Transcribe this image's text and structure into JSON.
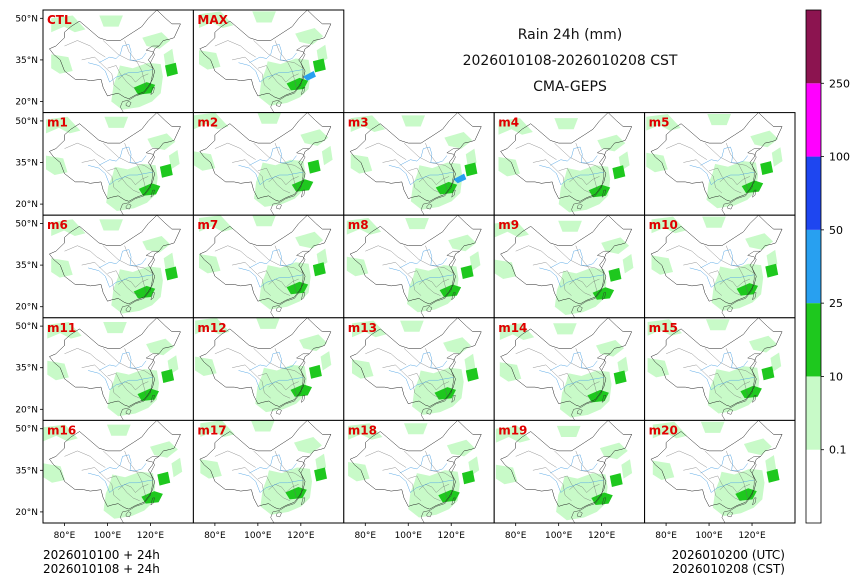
{
  "header": {
    "title": "Rain 24h (mm)",
    "period": "2026010108-2026010208 CST",
    "model": "CMA-GEPS"
  },
  "footer": {
    "left_line1": "2026010100 + 24h",
    "left_line2": "2026010108 + 24h",
    "right_line1": "2026010200 (UTC)",
    "right_line2": "2026010208 (CST)"
  },
  "chart_data": {
    "type": "heatmap",
    "title": "Rain 24h (mm)",
    "subtitle": "2026010108-2026010208 CST",
    "source": "CMA-GEPS",
    "panels": [
      "CTL",
      "MAX",
      "m1",
      "m2",
      "m3",
      "m4",
      "m5",
      "m6",
      "m7",
      "m8",
      "m9",
      "m10",
      "m11",
      "m12",
      "m13",
      "m14",
      "m15",
      "m16",
      "m17",
      "m18",
      "m19",
      "m20"
    ],
    "panel_grid_rows": [
      [
        "CTL",
        "MAX"
      ],
      [
        "m1",
        "m2",
        "m3",
        "m4",
        "m5"
      ],
      [
        "m6",
        "m7",
        "m8",
        "m9",
        "m10"
      ],
      [
        "m11",
        "m12",
        "m13",
        "m14",
        "m15"
      ],
      [
        "m16",
        "m17",
        "m18",
        "m19",
        "m20"
      ]
    ],
    "lat_ticks": [
      "50°N",
      "35°N",
      "20°N"
    ],
    "lat_values": [
      50,
      35,
      20
    ],
    "lon_ticks": [
      "80°E",
      "100°E",
      "120°E"
    ],
    "lon_values": [
      80,
      100,
      120
    ],
    "xlim": [
      70,
      140
    ],
    "ylim": [
      16,
      53
    ],
    "colorbar": {
      "levels": [
        0.1,
        10,
        25,
        50,
        100,
        250
      ],
      "labels": [
        "0.1",
        "10",
        "25",
        "50",
        "100",
        "250"
      ],
      "colors": [
        "#ffffff",
        "#c8fac8",
        "#1ec81e",
        "#28a0f0",
        "#1e46f0",
        "#ff00ff",
        "#8c1450"
      ],
      "placement": "right"
    }
  }
}
